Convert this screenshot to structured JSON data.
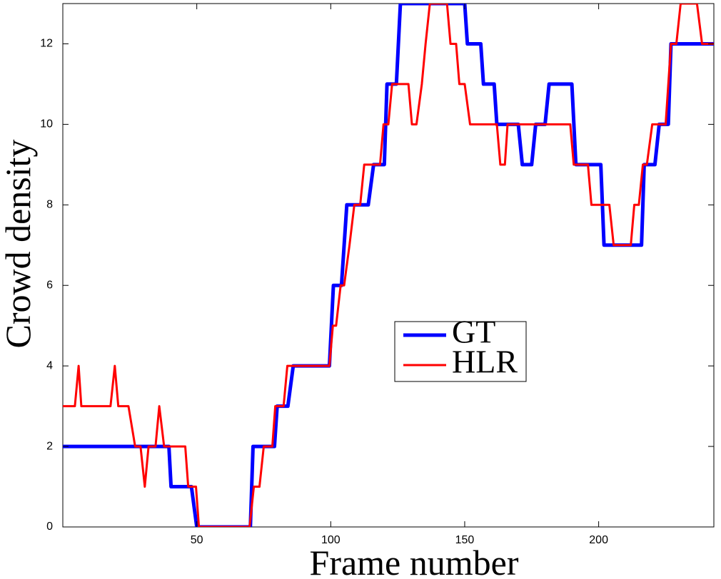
{
  "chart_data": {
    "type": "line",
    "xlabel": "Frame number",
    "ylabel": "Crowd density",
    "xlim": [
      0,
      243
    ],
    "ylim": [
      0,
      13
    ],
    "xticks": [
      50,
      100,
      150,
      200
    ],
    "yticks": [
      0,
      2,
      4,
      6,
      8,
      10,
      12
    ],
    "grid": false,
    "legend_loc": "center",
    "series": [
      {
        "name": "GT",
        "color": "#0000ff",
        "width": 5,
        "x": [
          0,
          39.6,
          40.4,
          48,
          50,
          70,
          71,
          79,
          80,
          84,
          86,
          99.5,
          101,
          104,
          106,
          114,
          116,
          120,
          121,
          124.5,
          126,
          150,
          151,
          156,
          157,
          161,
          162,
          170,
          171.5,
          175,
          176.5,
          180,
          181.5,
          190,
          191.5,
          200.8,
          202,
          216,
          217,
          221,
          222.6,
          226,
          227,
          243
        ],
        "values": [
          2,
          2,
          1,
          1,
          0,
          0,
          2,
          2,
          3,
          3,
          4,
          4,
          6,
          6,
          8,
          8,
          9,
          9,
          11,
          11,
          13,
          13,
          12,
          12,
          11,
          11,
          10,
          10,
          9,
          9,
          10,
          10,
          11,
          11,
          9,
          9,
          7,
          7,
          9,
          9,
          10,
          10,
          12,
          12
        ]
      },
      {
        "name": "HLR",
        "color": "#ff0000",
        "width": 3,
        "x": [
          0,
          4.5,
          5.9,
          6.9,
          17.8,
          19.4,
          20.7,
          24.5,
          27,
          29,
          30.6,
          32,
          34.6,
          36,
          37.8,
          45.7,
          46.8,
          49.7,
          50.8,
          69.7,
          71.3,
          73.4,
          75,
          78.2,
          79.3,
          82.4,
          83.8,
          99.5,
          100.8,
          102,
          103.7,
          105,
          107,
          108.8,
          111,
          112.5,
          118.4,
          119.7,
          121.5,
          122.9,
          129,
          130.3,
          132,
          134,
          135.4,
          137,
          143.4,
          144.7,
          146.8,
          148,
          150,
          152,
          162,
          163.3,
          165,
          166,
          189.4,
          190.7,
          196,
          197.3,
          204,
          205.6,
          212,
          213.3,
          215,
          216.5,
          218,
          220,
          225,
          227,
          229,
          230.6,
          236.7,
          238.6,
          243
        ],
        "values": [
          3,
          3,
          4,
          3,
          3,
          4,
          3,
          3,
          2,
          2,
          1,
          2,
          2,
          3,
          2,
          2,
          1,
          1,
          0,
          0,
          1,
          1,
          2,
          2,
          3,
          3,
          4,
          4,
          5,
          5,
          6,
          6,
          7,
          8,
          8,
          9,
          9,
          10,
          10,
          11,
          11,
          10,
          10,
          11,
          12,
          13,
          13,
          12,
          12,
          11,
          11,
          10,
          10,
          9,
          9,
          10,
          10,
          9,
          9,
          8,
          8,
          7,
          7,
          8,
          8,
          9,
          9,
          10,
          10,
          12,
          12,
          13,
          13,
          12,
          12
        ]
      }
    ]
  }
}
